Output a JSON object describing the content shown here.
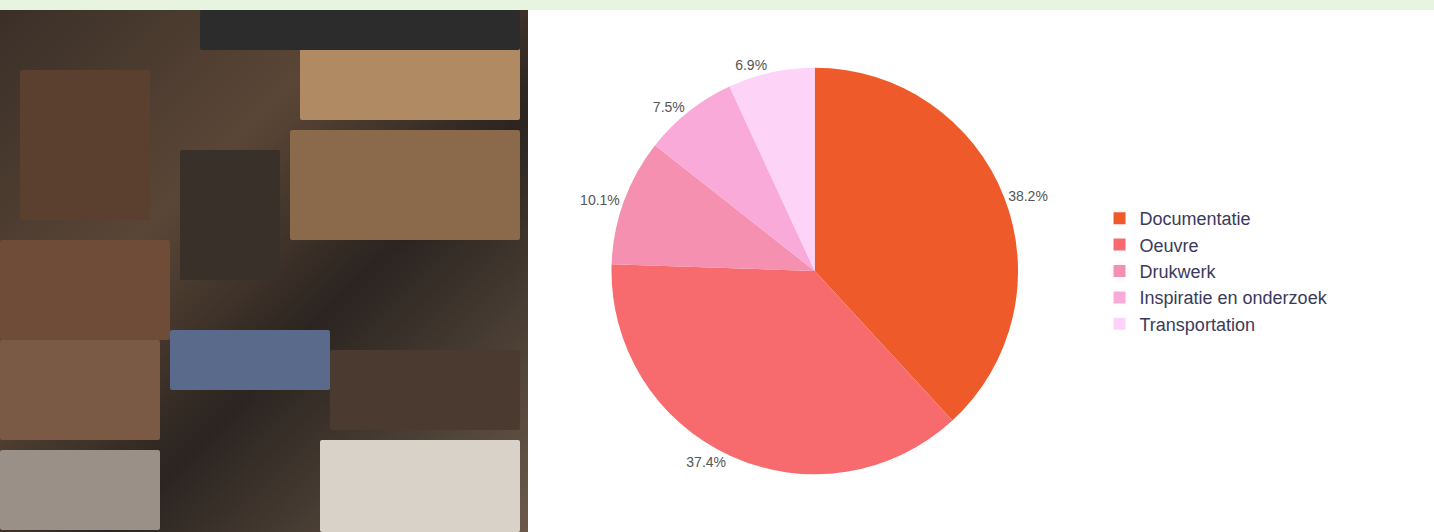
{
  "chart_data": {
    "type": "pie",
    "categories": [
      "Documentatie",
      "Oeuvre",
      "Drukwerk",
      "Inspiratie en onderzoek",
      "Transportation"
    ],
    "values": [
      38.2,
      37.4,
      10.1,
      7.5,
      6.9
    ],
    "value_labels": [
      "38.2%",
      "37.4%",
      "10.1%",
      "7.5%",
      "6.9%"
    ],
    "colors": [
      "#ef5a2a",
      "#f76b6e",
      "#f690b0",
      "#f9aad8",
      "#fdd3f8"
    ],
    "data_labels": true,
    "legend": "right"
  }
}
